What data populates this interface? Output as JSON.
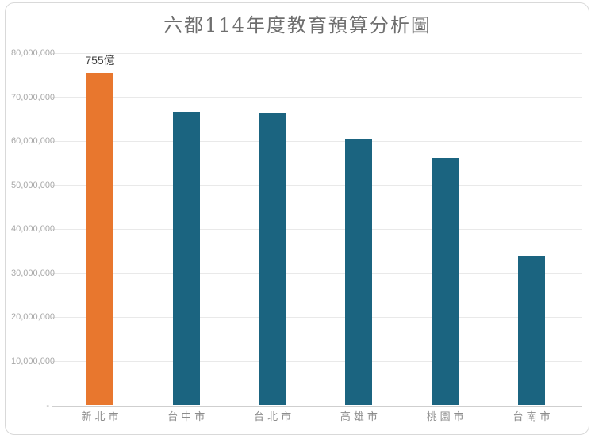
{
  "page": {
    "background": "#ffffff",
    "frame_border_color": "#d9d9d9"
  },
  "chart_data": {
    "type": "bar",
    "title": "六都114年度教育預算分析圖",
    "categories": [
      "新北市",
      "台中市",
      "台北市",
      "高雄市",
      "桃園市",
      "台南市"
    ],
    "values": [
      75500000,
      66700000,
      66500000,
      60500000,
      56300000,
      34000000
    ],
    "data_labels": [
      "755億",
      "",
      "",
      "",
      "",
      ""
    ],
    "bar_colors": [
      "#e8772e",
      "#1b6480",
      "#1b6480",
      "#1b6480",
      "#1b6480",
      "#1b6480"
    ],
    "xlabel": "",
    "ylabel": "",
    "ylim": [
      0,
      80000000
    ],
    "ytick_interval": 10000000,
    "yticks": [
      {
        "value": 80000000,
        "label": "80,000,000"
      },
      {
        "value": 70000000,
        "label": "70,000,000"
      },
      {
        "value": 60000000,
        "label": "60,000,000"
      },
      {
        "value": 50000000,
        "label": "50,000,000"
      },
      {
        "value": 40000000,
        "label": "40,000,000"
      },
      {
        "value": 30000000,
        "label": "30,000,000"
      },
      {
        "value": 20000000,
        "label": "20,000,000"
      },
      {
        "value": 10000000,
        "label": "10,000,000"
      },
      {
        "value": 0,
        "label": "-"
      }
    ],
    "grid": "horizontal",
    "legend": "none",
    "colors": {
      "highlight_bar": "#e8772e",
      "default_bar": "#1b6480",
      "gridline": "#e9e9e9",
      "axis_line": "#cfcfcf",
      "tick_label": "#a8a8a8",
      "category_label": "#8c8c8c",
      "title": "#6e6e6e",
      "data_label": "#3f3f3f"
    }
  }
}
